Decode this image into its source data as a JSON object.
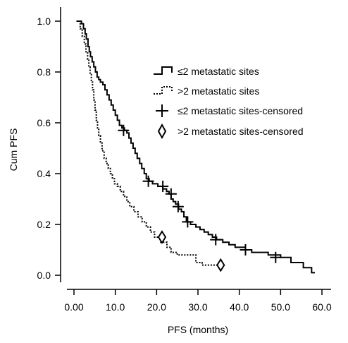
{
  "chart_data": {
    "type": "line",
    "title": "",
    "xlabel": "PFS (months)",
    "ylabel": "Cum PFS",
    "xlim": [
      0,
      60
    ],
    "ylim": [
      0,
      1.05
    ],
    "x_ticks": [
      "0.00",
      "10.0",
      "20.0",
      "30.0",
      "40.0",
      "50.0",
      "60.0"
    ],
    "x_tick_values": [
      0,
      10,
      20,
      30,
      40,
      50,
      60
    ],
    "y_ticks": [
      "0.0",
      "0.2",
      "0.4",
      "0.6",
      "0.8",
      "1.0"
    ],
    "y_tick_values": [
      0,
      0.2,
      0.4,
      0.6,
      0.8,
      1.0
    ],
    "grid": false,
    "legend_placement": "top-right",
    "series": [
      {
        "name": "≤2 metastatic sites",
        "style": "solid",
        "color": "#000000",
        "steps": [
          [
            0.6,
            1.0
          ],
          [
            1.8,
            0.99
          ],
          [
            2.3,
            0.97
          ],
          [
            2.7,
            0.95
          ],
          [
            3.0,
            0.93
          ],
          [
            3.4,
            0.9
          ],
          [
            3.7,
            0.88
          ],
          [
            4.0,
            0.86
          ],
          [
            4.4,
            0.84
          ],
          [
            4.8,
            0.82
          ],
          [
            5.2,
            0.8
          ],
          [
            5.6,
            0.78
          ],
          [
            6.0,
            0.77
          ],
          [
            6.4,
            0.76
          ],
          [
            7.0,
            0.75
          ],
          [
            7.5,
            0.73
          ],
          [
            8.0,
            0.71
          ],
          [
            8.5,
            0.69
          ],
          [
            9.0,
            0.67
          ],
          [
            9.5,
            0.65
          ],
          [
            10.0,
            0.63
          ],
          [
            10.5,
            0.61
          ],
          [
            11.0,
            0.59
          ],
          [
            11.6,
            0.58
          ],
          [
            12.2,
            0.57
          ],
          [
            12.8,
            0.56
          ],
          [
            13.3,
            0.54
          ],
          [
            13.8,
            0.52
          ],
          [
            14.3,
            0.5
          ],
          [
            14.8,
            0.48
          ],
          [
            15.3,
            0.46
          ],
          [
            15.9,
            0.44
          ],
          [
            16.4,
            0.42
          ],
          [
            17.0,
            0.4
          ],
          [
            17.5,
            0.38
          ],
          [
            18.2,
            0.37
          ],
          [
            19.0,
            0.36
          ],
          [
            20.3,
            0.35
          ],
          [
            21.5,
            0.34
          ],
          [
            22.4,
            0.33
          ],
          [
            23.0,
            0.32
          ],
          [
            23.5,
            0.3
          ],
          [
            24.0,
            0.29
          ],
          [
            24.6,
            0.28
          ],
          [
            25.3,
            0.26
          ],
          [
            26.0,
            0.25
          ],
          [
            26.6,
            0.23
          ],
          [
            27.2,
            0.21
          ],
          [
            28.2,
            0.2
          ],
          [
            29.5,
            0.19
          ],
          [
            30.5,
            0.18
          ],
          [
            31.5,
            0.17
          ],
          [
            32.5,
            0.16
          ],
          [
            33.5,
            0.15
          ],
          [
            34.5,
            0.14
          ],
          [
            36.0,
            0.13
          ],
          [
            37.5,
            0.12
          ],
          [
            39.0,
            0.11
          ],
          [
            41.5,
            0.1
          ],
          [
            43.0,
            0.09
          ],
          [
            47.0,
            0.08
          ],
          [
            50.0,
            0.07
          ],
          [
            52.5,
            0.05
          ],
          [
            55.5,
            0.03
          ],
          [
            57.5,
            0.01
          ],
          [
            58.3,
            0.01
          ]
        ]
      },
      {
        "name": ">2 metastatic sites",
        "style": "dotted",
        "color": "#000000",
        "steps": [
          [
            0.6,
            1.0
          ],
          [
            1.5,
            0.97
          ],
          [
            2.0,
            0.94
          ],
          [
            2.5,
            0.91
          ],
          [
            2.9,
            0.88
          ],
          [
            3.3,
            0.85
          ],
          [
            3.6,
            0.82
          ],
          [
            3.9,
            0.79
          ],
          [
            4.2,
            0.76
          ],
          [
            4.5,
            0.73
          ],
          [
            4.8,
            0.69
          ],
          [
            5.1,
            0.65
          ],
          [
            5.4,
            0.61
          ],
          [
            5.7,
            0.58
          ],
          [
            6.0,
            0.55
          ],
          [
            6.4,
            0.52
          ],
          [
            6.8,
            0.49
          ],
          [
            7.3,
            0.46
          ],
          [
            7.8,
            0.44
          ],
          [
            8.3,
            0.42
          ],
          [
            8.8,
            0.4
          ],
          [
            9.3,
            0.38
          ],
          [
            9.8,
            0.36
          ],
          [
            10.5,
            0.35
          ],
          [
            11.2,
            0.33
          ],
          [
            12.0,
            0.31
          ],
          [
            12.8,
            0.29
          ],
          [
            13.5,
            0.27
          ],
          [
            14.5,
            0.25
          ],
          [
            15.5,
            0.23
          ],
          [
            16.5,
            0.21
          ],
          [
            17.5,
            0.19
          ],
          [
            18.5,
            0.17
          ],
          [
            19.5,
            0.15
          ],
          [
            21.0,
            0.13
          ],
          [
            22.5,
            0.11
          ],
          [
            23.5,
            0.09
          ],
          [
            25.0,
            0.08
          ],
          [
            29.5,
            0.05
          ],
          [
            31.0,
            0.04
          ],
          [
            33.0,
            0.04
          ],
          [
            35.5,
            0.04
          ]
        ]
      }
    ],
    "censored": [
      {
        "name": "≤2 metastatic sites-censored",
        "marker": "plus",
        "points": [
          [
            12.0,
            0.57
          ],
          [
            18.0,
            0.37
          ],
          [
            21.5,
            0.35
          ],
          [
            23.5,
            0.32
          ],
          [
            25.2,
            0.27
          ],
          [
            27.5,
            0.21
          ],
          [
            34.3,
            0.14
          ],
          [
            41.5,
            0.1
          ],
          [
            48.8,
            0.07
          ]
        ]
      },
      {
        "name": ">2 metastatic sites-censored",
        "marker": "diamond",
        "points": [
          [
            21.3,
            0.15
          ],
          [
            35.5,
            0.04
          ]
        ]
      }
    ]
  }
}
